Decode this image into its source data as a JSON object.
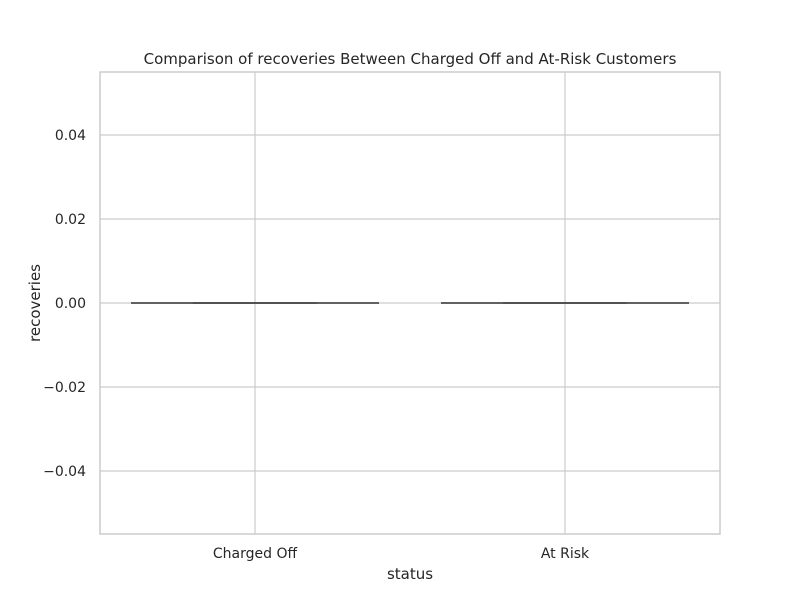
{
  "chart_data": {
    "type": "box",
    "title": "Comparison of recoveries Between Charged Off and At-Risk Customers",
    "xlabel": "status",
    "ylabel": "recoveries",
    "categories": [
      "Charged Off",
      "At Risk"
    ],
    "boxes": [
      {
        "category": "Charged Off",
        "min": 0.0,
        "q1": 0.0,
        "median": 0.0,
        "q3": 0.0,
        "max": 0.0
      },
      {
        "category": "At Risk",
        "min": 0.0,
        "q1": 0.0,
        "median": 0.0,
        "q3": 0.0,
        "max": 0.0
      }
    ],
    "ylim": [
      -0.055,
      0.055
    ],
    "yticks": [
      -0.04,
      -0.02,
      0.0,
      0.02,
      0.04
    ],
    "ytick_labels": [
      "−0.04",
      "−0.02",
      "0.00",
      "0.02",
      "0.04"
    ],
    "grid": true,
    "colors": {
      "grid": "#cccccc",
      "frame": "#cccccc",
      "box_line": "#4d4d4d",
      "text": "#262626"
    }
  }
}
